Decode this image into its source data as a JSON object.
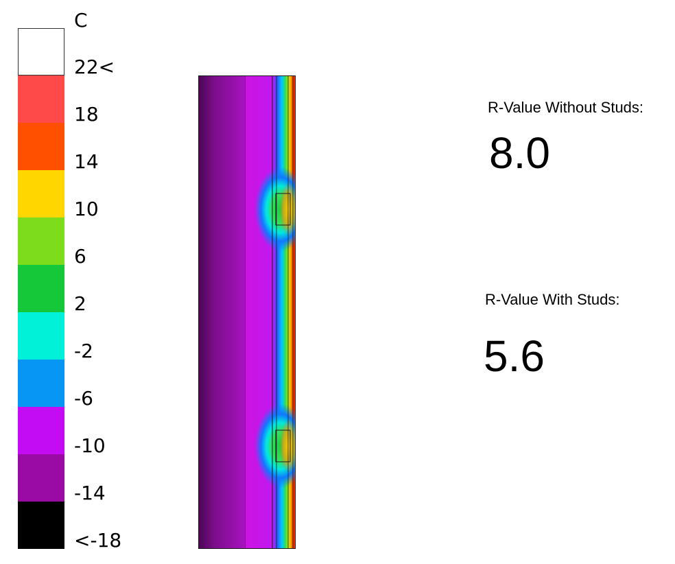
{
  "legend": {
    "unit": "C",
    "bands": [
      {
        "label": "22<",
        "color": "#ffffff"
      },
      {
        "label": "18",
        "color": "#ff4a4a"
      },
      {
        "label": "14",
        "color": "#ff5000"
      },
      {
        "label": "10",
        "color": "#ffd600"
      },
      {
        "label": "6",
        "color": "#7ddd1c"
      },
      {
        "label": "2",
        "color": "#14c83a"
      },
      {
        "label": "-2",
        "color": "#00f0d8"
      },
      {
        "label": "-6",
        "color": "#0896f4"
      },
      {
        "label": "-10",
        "color": "#c40cf4"
      },
      {
        "label": "-14",
        "color": "#9a0aa4"
      },
      {
        "label": "<-18",
        "color": "#000000"
      }
    ]
  },
  "results": {
    "without_studs_label": "R-Value Without Studs:",
    "without_studs_value": "8.0",
    "with_studs_label": "R-Value With Studs:",
    "with_studs_value": "5.6"
  }
}
